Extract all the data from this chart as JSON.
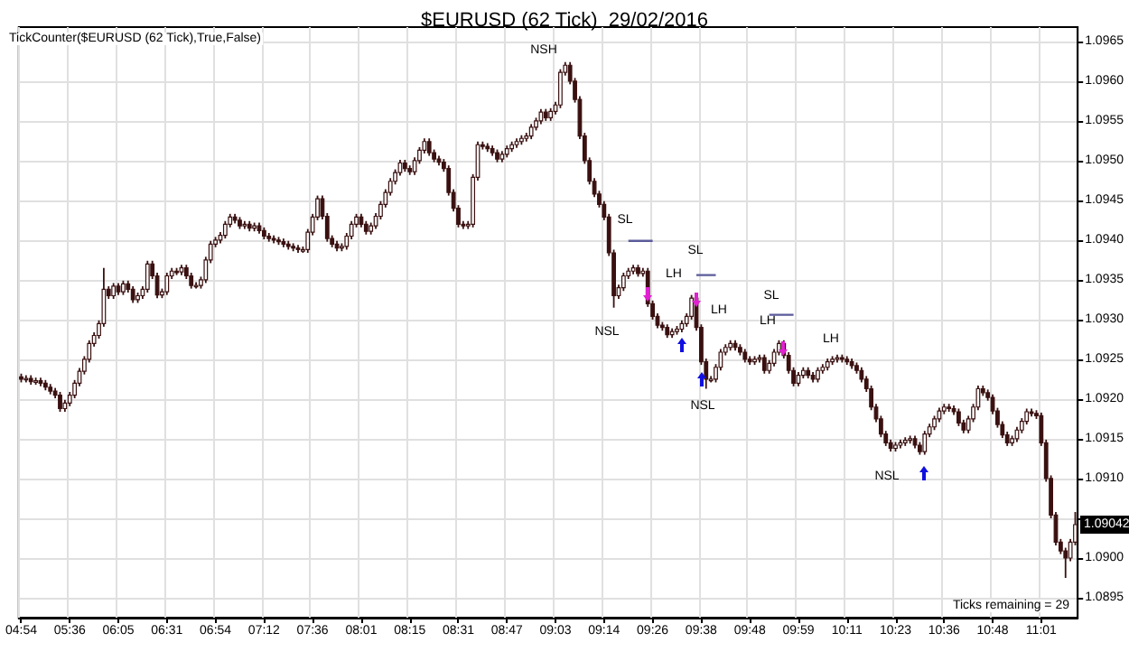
{
  "chart_data": {
    "type": "candlestick",
    "title": "$EURUSD (62 Tick)  29/02/2016",
    "color": "#3a1010",
    "categories": [
      "04:54",
      null,
      null,
      null,
      null,
      null,
      null,
      null,
      null,
      null,
      "05:36",
      null,
      null,
      null,
      null,
      null,
      null,
      null,
      null,
      null,
      "06:05",
      null,
      null,
      null,
      null,
      null,
      null,
      null,
      null,
      null,
      "06:31",
      null,
      null,
      null,
      null,
      null,
      null,
      null,
      null,
      null,
      "06:54",
      null,
      null,
      null,
      null,
      null,
      null,
      null,
      null,
      null,
      "07:12",
      null,
      null,
      null,
      null,
      null,
      null,
      null,
      null,
      null,
      "07:36",
      null,
      null,
      null,
      null,
      null,
      null,
      null,
      null,
      null,
      "08:01",
      null,
      null,
      null,
      null,
      null,
      null,
      null,
      null,
      null,
      "08:15",
      null,
      null,
      null,
      null,
      null,
      null,
      null,
      null,
      null,
      "08:31",
      null,
      null,
      null,
      null,
      null,
      null,
      null,
      null,
      null,
      "08:47",
      null,
      null,
      null,
      null,
      null,
      null,
      null,
      null,
      null,
      "09:03",
      null,
      null,
      null,
      null,
      null,
      null,
      null,
      null,
      null,
      "09:14",
      null,
      null,
      null,
      null,
      null,
      null,
      null,
      null,
      null,
      "09:26",
      null,
      null,
      null,
      null,
      null,
      null,
      null,
      null,
      null,
      "09:38",
      null,
      null,
      null,
      null,
      null,
      null,
      null,
      null,
      null,
      "09:48",
      null,
      null,
      null,
      null,
      null,
      null,
      null,
      null,
      null,
      "09:59",
      null,
      null,
      null,
      null,
      null,
      null,
      null,
      null,
      null,
      "10:11",
      null,
      null,
      null,
      null,
      null,
      null,
      null,
      null,
      null,
      "10:23",
      null,
      null,
      null,
      null,
      null,
      null,
      null,
      null,
      null,
      "10:36",
      null,
      null,
      null,
      null,
      null,
      null,
      null,
      null,
      null,
      "10:48",
      null,
      null,
      null,
      null,
      null,
      null,
      null,
      null,
      null,
      "11:01",
      null,
      null,
      null,
      null,
      null,
      null,
      null
    ],
    "ohlc": [
      [
        1.09228,
        1.09232,
        1.09221,
        1.09225
      ],
      [
        1.09225,
        1.0923,
        1.09221,
        1.09226
      ],
      [
        1.09226,
        1.0923,
        1.09218,
        1.09222
      ],
      [
        1.09222,
        1.09227,
        1.09218,
        1.09223
      ],
      [
        1.09223,
        1.09227,
        1.09216,
        1.0922
      ],
      [
        1.0922,
        1.09224,
        1.09211,
        1.09215
      ],
      [
        1.09215,
        1.09219,
        1.09206,
        1.0921
      ],
      [
        1.0921,
        1.09214,
        1.09201,
        1.09205
      ],
      [
        1.09205,
        1.09209,
        1.09184,
        1.09188
      ],
      [
        1.09188,
        1.09199,
        1.09184,
        1.09195
      ],
      [
        1.09195,
        1.09209,
        1.09191,
        1.09205
      ],
      [
        1.09205,
        1.09224,
        1.09201,
        1.0922
      ],
      [
        1.0922,
        1.09239,
        1.09216,
        1.09235
      ],
      [
        1.09235,
        1.09254,
        1.09231,
        1.0925
      ],
      [
        1.0925,
        1.09274,
        1.09246,
        1.0927
      ],
      [
        1.0927,
        1.09284,
        1.09266,
        1.0928
      ],
      [
        1.0928,
        1.09299,
        1.09276,
        1.09295
      ],
      [
        1.09295,
        1.09365,
        1.09291,
        1.09338
      ],
      [
        1.09338,
        1.09342,
        1.09326,
        1.0933
      ],
      [
        1.0933,
        1.09346,
        1.09326,
        1.09342
      ],
      [
        1.09342,
        1.09346,
        1.09331,
        1.09335
      ],
      [
        1.09335,
        1.09349,
        1.09331,
        1.09345
      ],
      [
        1.09345,
        1.09349,
        1.09334,
        1.09338
      ],
      [
        1.09338,
        1.09342,
        1.09321,
        1.09325
      ],
      [
        1.09325,
        1.09334,
        1.09321,
        1.0933
      ],
      [
        1.0933,
        1.09342,
        1.09326,
        1.09338
      ],
      [
        1.09338,
        1.09374,
        1.09334,
        1.0937
      ],
      [
        1.0937,
        1.09374,
        1.09351,
        1.09355
      ],
      [
        1.09355,
        1.09359,
        1.09327,
        1.09331
      ],
      [
        1.09331,
        1.09339,
        1.09327,
        1.09335
      ],
      [
        1.09335,
        1.09359,
        1.09331,
        1.09355
      ],
      [
        1.09355,
        1.09365,
        1.09351,
        1.09361
      ],
      [
        1.09361,
        1.09365,
        1.09356,
        1.0936
      ],
      [
        1.0936,
        1.09369,
        1.09356,
        1.09365
      ],
      [
        1.09365,
        1.09369,
        1.09351,
        1.09355
      ],
      [
        1.09355,
        1.09359,
        1.09339,
        1.09343
      ],
      [
        1.09343,
        1.09347,
        1.09339,
        1.09343
      ],
      [
        1.09343,
        1.09354,
        1.09339,
        1.0935
      ],
      [
        1.0935,
        1.09379,
        1.09346,
        1.09375
      ],
      [
        1.09375,
        1.09399,
        1.09371,
        1.09395
      ],
      [
        1.09395,
        1.09404,
        1.09391,
        1.094
      ],
      [
        1.094,
        1.0941,
        1.09396,
        1.09406
      ],
      [
        1.09406,
        1.09424,
        1.09402,
        1.0942
      ],
      [
        1.0942,
        1.09433,
        1.09416,
        1.09429
      ],
      [
        1.09429,
        1.09433,
        1.09421,
        1.09425
      ],
      [
        1.09425,
        1.09429,
        1.09414,
        1.09418
      ],
      [
        1.09418,
        1.09424,
        1.09414,
        1.0942
      ],
      [
        1.0942,
        1.09424,
        1.09411,
        1.09415
      ],
      [
        1.09415,
        1.09422,
        1.09411,
        1.09418
      ],
      [
        1.09418,
        1.09422,
        1.09408,
        1.09412
      ],
      [
        1.09412,
        1.09416,
        1.09401,
        1.09405
      ],
      [
        1.09405,
        1.09409,
        1.09398,
        1.09402
      ],
      [
        1.09402,
        1.09406,
        1.09396,
        1.094
      ],
      [
        1.094,
        1.09404,
        1.09394,
        1.09398
      ],
      [
        1.09398,
        1.09402,
        1.09391,
        1.09395
      ],
      [
        1.09395,
        1.09399,
        1.09388,
        1.09392
      ],
      [
        1.09392,
        1.09396,
        1.09386,
        1.0939
      ],
      [
        1.0939,
        1.09394,
        1.09384,
        1.09388
      ],
      [
        1.09388,
        1.09392,
        1.09384,
        1.09388
      ],
      [
        1.09388,
        1.09414,
        1.09384,
        1.0941
      ],
      [
        1.0941,
        1.09433,
        1.09406,
        1.09429
      ],
      [
        1.09429,
        1.09456,
        1.09425,
        1.09452
      ],
      [
        1.09452,
        1.09456,
        1.09426,
        1.0943
      ],
      [
        1.0943,
        1.09434,
        1.09398,
        1.09402
      ],
      [
        1.09402,
        1.09406,
        1.09391,
        1.09395
      ],
      [
        1.09395,
        1.09399,
        1.09386,
        1.0939
      ],
      [
        1.0939,
        1.09396,
        1.09386,
        1.09392
      ],
      [
        1.09392,
        1.09409,
        1.09388,
        1.09405
      ],
      [
        1.09405,
        1.09424,
        1.09401,
        1.0942
      ],
      [
        1.0942,
        1.09433,
        1.09416,
        1.09429
      ],
      [
        1.09429,
        1.09433,
        1.09416,
        1.0942
      ],
      [
        1.0942,
        1.09424,
        1.09407,
        1.09411
      ],
      [
        1.09411,
        1.09422,
        1.09407,
        1.09418
      ],
      [
        1.09418,
        1.09434,
        1.09414,
        1.0943
      ],
      [
        1.0943,
        1.09449,
        1.09426,
        1.09445
      ],
      [
        1.09445,
        1.09464,
        1.09441,
        1.0946
      ],
      [
        1.0946,
        1.09478,
        1.09456,
        1.09474
      ],
      [
        1.09474,
        1.09489,
        1.0947,
        1.09485
      ],
      [
        1.09485,
        1.09501,
        1.09481,
        1.09497
      ],
      [
        1.09497,
        1.09501,
        1.09486,
        1.0949
      ],
      [
        1.0949,
        1.09494,
        1.09482,
        1.09486
      ],
      [
        1.09486,
        1.09504,
        1.09482,
        1.095
      ],
      [
        1.095,
        1.09517,
        1.09496,
        1.09513
      ],
      [
        1.09513,
        1.09528,
        1.09509,
        1.09524
      ],
      [
        1.09524,
        1.09528,
        1.09506,
        1.0951
      ],
      [
        1.0951,
        1.09514,
        1.09498,
        1.09502
      ],
      [
        1.09502,
        1.09506,
        1.09494,
        1.09498
      ],
      [
        1.09498,
        1.09502,
        1.09486,
        1.0949
      ],
      [
        1.0949,
        1.09494,
        1.09456,
        1.0946
      ],
      [
        1.0946,
        1.09464,
        1.09436,
        1.0944
      ],
      [
        1.0944,
        1.09444,
        1.09416,
        1.0942
      ],
      [
        1.0942,
        1.09424,
        1.09414,
        1.09418
      ],
      [
        1.09418,
        1.09424,
        1.09414,
        1.0942
      ],
      [
        1.0942,
        1.09483,
        1.09416,
        1.09479
      ],
      [
        1.09479,
        1.09524,
        1.09475,
        1.0952
      ],
      [
        1.0952,
        1.09524,
        1.09514,
        1.09518
      ],
      [
        1.09518,
        1.09522,
        1.09511,
        1.09515
      ],
      [
        1.09515,
        1.09519,
        1.09506,
        1.0951
      ],
      [
        1.0951,
        1.09514,
        1.09498,
        1.09502
      ],
      [
        1.09502,
        1.09512,
        1.09498,
        1.09508
      ],
      [
        1.09508,
        1.09519,
        1.09504,
        1.09515
      ],
      [
        1.09515,
        1.09524,
        1.09511,
        1.0952
      ],
      [
        1.0952,
        1.09528,
        1.09516,
        1.09524
      ],
      [
        1.09524,
        1.09532,
        1.0952,
        1.09528
      ],
      [
        1.09528,
        1.09535,
        1.09524,
        1.09531
      ],
      [
        1.09531,
        1.09546,
        1.09527,
        1.09542
      ],
      [
        1.09542,
        1.09554,
        1.09538,
        1.0955
      ],
      [
        1.0955,
        1.09565,
        1.09546,
        1.09561
      ],
      [
        1.09561,
        1.09565,
        1.0955,
        1.09554
      ],
      [
        1.09554,
        1.09566,
        1.0955,
        1.09562
      ],
      [
        1.09562,
        1.09574,
        1.09558,
        1.0957
      ],
      [
        1.0957,
        1.09615,
        1.09566,
        1.09611
      ],
      [
        1.09611,
        1.09624,
        1.09607,
        1.0962
      ],
      [
        1.0962,
        1.09624,
        1.09596,
        1.096
      ],
      [
        1.096,
        1.09604,
        1.09573,
        1.09577
      ],
      [
        1.09577,
        1.09581,
        1.09527,
        1.09531
      ],
      [
        1.09531,
        1.09535,
        1.09496,
        1.095
      ],
      [
        1.095,
        1.09504,
        1.0947,
        1.09474
      ],
      [
        1.09474,
        1.09478,
        1.09454,
        1.09458
      ],
      [
        1.09458,
        1.09462,
        1.09441,
        1.09445
      ],
      [
        1.09445,
        1.09449,
        1.09425,
        1.09429
      ],
      [
        1.09429,
        1.09433,
        1.0938,
        1.09384
      ],
      [
        1.09384,
        1.09388,
        1.09315,
        1.0933
      ],
      [
        1.0933,
        1.09344,
        1.09326,
        1.0934
      ],
      [
        1.0934,
        1.09359,
        1.09336,
        1.09355
      ],
      [
        1.09355,
        1.09365,
        1.09351,
        1.09361
      ],
      [
        1.09361,
        1.09369,
        1.09357,
        1.09365
      ],
      [
        1.09365,
        1.09369,
        1.09354,
        1.09358
      ],
      [
        1.09358,
        1.09365,
        1.09354,
        1.09361
      ],
      [
        1.09361,
        1.09365,
        1.09316,
        1.0932
      ],
      [
        1.0932,
        1.09324,
        1.093,
        1.09304
      ],
      [
        1.09304,
        1.09308,
        1.09289,
        1.09293
      ],
      [
        1.09293,
        1.09297,
        1.09286,
        1.0929
      ],
      [
        1.0929,
        1.09294,
        1.09277,
        1.09281
      ],
      [
        1.09281,
        1.09289,
        1.09277,
        1.09285
      ],
      [
        1.09285,
        1.09292,
        1.09281,
        1.09288
      ],
      [
        1.09288,
        1.09299,
        1.09284,
        1.09295
      ],
      [
        1.09295,
        1.09308,
        1.09291,
        1.09304
      ],
      [
        1.09304,
        1.09331,
        1.093,
        1.09327
      ],
      [
        1.09327,
        1.09331,
        1.09286,
        1.0929
      ],
      [
        1.0929,
        1.09294,
        1.09243,
        1.09247
      ],
      [
        1.09247,
        1.09251,
        1.09213,
        1.09225
      ],
      [
        1.09225,
        1.09229,
        1.09221,
        1.09225
      ],
      [
        1.09225,
        1.09244,
        1.09221,
        1.0924
      ],
      [
        1.0924,
        1.09263,
        1.09236,
        1.09259
      ],
      [
        1.09259,
        1.09269,
        1.09255,
        1.09265
      ],
      [
        1.09265,
        1.09274,
        1.09261,
        1.0927
      ],
      [
        1.0927,
        1.09274,
        1.09261,
        1.09265
      ],
      [
        1.09265,
        1.09269,
        1.09255,
        1.09259
      ],
      [
        1.09259,
        1.09263,
        1.09246,
        1.0925
      ],
      [
        1.0925,
        1.09254,
        1.09243,
        1.09247
      ],
      [
        1.09247,
        1.09254,
        1.09243,
        1.0925
      ],
      [
        1.0925,
        1.09256,
        1.09246,
        1.09252
      ],
      [
        1.09252,
        1.09256,
        1.09232,
        1.09236
      ],
      [
        1.09236,
        1.09249,
        1.09232,
        1.09245
      ],
      [
        1.09245,
        1.09263,
        1.09241,
        1.09259
      ],
      [
        1.09259,
        1.09274,
        1.09255,
        1.0927
      ],
      [
        1.0927,
        1.09274,
        1.09251,
        1.09255
      ],
      [
        1.09255,
        1.09259,
        1.09232,
        1.09236
      ],
      [
        1.09236,
        1.0924,
        1.09216,
        1.0922
      ],
      [
        1.0922,
        1.09234,
        1.09216,
        1.0923
      ],
      [
        1.0923,
        1.0924,
        1.09226,
        1.09236
      ],
      [
        1.09236,
        1.0924,
        1.09226,
        1.0923
      ],
      [
        1.0923,
        1.09234,
        1.09221,
        1.09225
      ],
      [
        1.09225,
        1.0924,
        1.09221,
        1.09236
      ],
      [
        1.09236,
        1.09244,
        1.09232,
        1.0924
      ],
      [
        1.0924,
        1.09251,
        1.09236,
        1.09247
      ],
      [
        1.09247,
        1.09254,
        1.09243,
        1.0925
      ],
      [
        1.0925,
        1.09256,
        1.09246,
        1.09252
      ],
      [
        1.09252,
        1.09256,
        1.09246,
        1.0925
      ],
      [
        1.0925,
        1.09254,
        1.09243,
        1.09247
      ],
      [
        1.09247,
        1.09251,
        1.09238,
        1.09242
      ],
      [
        1.09242,
        1.09246,
        1.09232,
        1.09236
      ],
      [
        1.09236,
        1.0924,
        1.09221,
        1.09225
      ],
      [
        1.09225,
        1.09229,
        1.09209,
        1.09213
      ],
      [
        1.09213,
        1.09217,
        1.09186,
        1.0919
      ],
      [
        1.0919,
        1.09194,
        1.09171,
        1.09175
      ],
      [
        1.09175,
        1.09179,
        1.09152,
        1.09156
      ],
      [
        1.09156,
        1.0916,
        1.09141,
        1.09145
      ],
      [
        1.09145,
        1.09149,
        1.09134,
        1.09138
      ],
      [
        1.09138,
        1.09146,
        1.09134,
        1.09142
      ],
      [
        1.09142,
        1.09149,
        1.09138,
        1.09145
      ],
      [
        1.09145,
        1.09152,
        1.09141,
        1.09148
      ],
      [
        1.09148,
        1.09154,
        1.09144,
        1.0915
      ],
      [
        1.0915,
        1.09154,
        1.09138,
        1.09142
      ],
      [
        1.09142,
        1.09146,
        1.0913,
        1.09134
      ],
      [
        1.09134,
        1.0916,
        1.0913,
        1.09156
      ],
      [
        1.09156,
        1.09169,
        1.09152,
        1.09165
      ],
      [
        1.09165,
        1.09179,
        1.09161,
        1.09175
      ],
      [
        1.09175,
        1.09189,
        1.09171,
        1.09185
      ],
      [
        1.09185,
        1.09194,
        1.09181,
        1.0919
      ],
      [
        1.0919,
        1.09194,
        1.09184,
        1.09188
      ],
      [
        1.09188,
        1.09192,
        1.0918,
        1.09184
      ],
      [
        1.09184,
        1.09188,
        1.09166,
        1.0917
      ],
      [
        1.0917,
        1.09174,
        1.09157,
        1.09161
      ],
      [
        1.09161,
        1.09179,
        1.09157,
        1.09175
      ],
      [
        1.09175,
        1.09194,
        1.09171,
        1.0919
      ],
      [
        1.0919,
        1.09217,
        1.09186,
        1.09213
      ],
      [
        1.09213,
        1.09217,
        1.09204,
        1.09208
      ],
      [
        1.09208,
        1.09212,
        1.09198,
        1.09202
      ],
      [
        1.09202,
        1.09206,
        1.09181,
        1.09185
      ],
      [
        1.09185,
        1.09189,
        1.09164,
        1.09168
      ],
      [
        1.09168,
        1.09172,
        1.09151,
        1.09155
      ],
      [
        1.09155,
        1.09159,
        1.09141,
        1.09145
      ],
      [
        1.09145,
        1.09154,
        1.09141,
        1.0915
      ],
      [
        1.0915,
        1.09165,
        1.09146,
        1.09161
      ],
      [
        1.09161,
        1.09176,
        1.09157,
        1.09172
      ],
      [
        1.09172,
        1.09188,
        1.09168,
        1.09184
      ],
      [
        1.09184,
        1.09188,
        1.09178,
        1.09182
      ],
      [
        1.09182,
        1.09186,
        1.09175,
        1.09179
      ],
      [
        1.09179,
        1.09183,
        1.09141,
        1.09145
      ],
      [
        1.09145,
        1.09149,
        1.09096,
        1.091
      ],
      [
        1.091,
        1.09104,
        1.0905,
        1.09054
      ],
      [
        1.09054,
        1.09058,
        1.09016,
        1.0902
      ],
      [
        1.0902,
        1.09024,
        1.09005,
        1.09009
      ],
      [
        1.09009,
        1.09013,
        1.08975,
        1.09
      ],
      [
        1.09,
        1.09024,
        1.08996,
        1.0902
      ],
      [
        1.0902,
        1.09058,
        1.09016,
        1.09042
      ]
    ],
    "series": [
      {
        "type": "line",
        "color": "#5b5b9b",
        "values": [
          null,
          null,
          null,
          null,
          null,
          null,
          null,
          null,
          null,
          null,
          null,
          null,
          null,
          null,
          null,
          null,
          null,
          null,
          null,
          null,
          null,
          null,
          null,
          null,
          null,
          null,
          null,
          null,
          null,
          null,
          null,
          null,
          null,
          null,
          null,
          null,
          null,
          null,
          null,
          null,
          null,
          null,
          null,
          null,
          null,
          null,
          null,
          null,
          null,
          null,
          null,
          null,
          null,
          null,
          null,
          null,
          null,
          null,
          null,
          null,
          null,
          null,
          null,
          null,
          null,
          null,
          null,
          null,
          null,
          null,
          null,
          null,
          null,
          null,
          null,
          null,
          null,
          null,
          null,
          null,
          null,
          null,
          null,
          null,
          null,
          null,
          null,
          null,
          null,
          null,
          null,
          null,
          null,
          null,
          null,
          null,
          null,
          null,
          null,
          null,
          null,
          null,
          null,
          null,
          null,
          null,
          null,
          null,
          null,
          null,
          null,
          null,
          null,
          null,
          null,
          null,
          null,
          null,
          null,
          null,
          null,
          null,
          null,
          null,
          null,
          1.09399,
          1.09399,
          1.09399,
          1.09399,
          1.09399,
          1.09399,
          null,
          null,
          null,
          null,
          null,
          null,
          null,
          null,
          1.09356,
          1.09356,
          1.09356,
          1.09356,
          1.09356,
          null,
          null,
          null,
          null,
          null,
          null,
          null,
          null,
          null,
          null,
          1.09306,
          1.09306,
          1.09306,
          1.09306,
          1.09306,
          1.09306,
          null,
          null,
          null,
          null,
          null,
          null,
          null,
          null,
          null,
          null,
          null,
          null,
          null,
          null,
          null,
          null,
          null,
          null,
          null,
          null,
          null,
          null,
          null,
          null,
          null,
          null,
          null,
          null,
          null,
          null,
          null,
          null,
          null,
          null,
          null,
          null,
          null,
          null,
          null,
          null,
          null,
          null,
          null,
          null,
          null,
          null,
          null,
          null,
          null,
          null,
          null,
          null,
          null,
          null,
          null,
          null,
          null,
          null
        ]
      }
    ],
    "marker": "none",
    "ylim": [
      1.08925,
      1.09668
    ],
    "yticks": [
      {
        "value": 1.0895,
        "label": "1.0895"
      },
      {
        "value": 1.09,
        "label": "1.0900"
      },
      {
        "value": 1.0905,
        "label": null
      },
      {
        "value": 1.091,
        "label": "1.0910"
      },
      {
        "value": 1.0915,
        "label": "1.0915"
      },
      {
        "value": 1.092,
        "label": "1.0920"
      },
      {
        "value": 1.0925,
        "label": "1.0925"
      },
      {
        "value": 1.093,
        "label": "1.0930"
      },
      {
        "value": 1.0935,
        "label": "1.0935"
      },
      {
        "value": 1.094,
        "label": "1.0940"
      },
      {
        "value": 1.0945,
        "label": "1.0945"
      },
      {
        "value": 1.095,
        "label": "1.0950"
      },
      {
        "value": 1.0955,
        "label": "1.0955"
      },
      {
        "value": 1.096,
        "label": "1.0960"
      },
      {
        "value": 1.0965,
        "label": "1.0965"
      }
    ],
    "grid": true,
    "annotations": [
      "TickCounter($EURUSD (62 Tick),True,False)",
      "Ticks remaining = 29",
      {
        "text": "1.09042",
        "y": 1.09042
      },
      "NSH",
      "SL",
      "SL",
      "SL",
      "LH",
      "LH",
      "LH",
      "LH",
      "NSL",
      "NSL",
      "NSL"
    ]
  }
}
